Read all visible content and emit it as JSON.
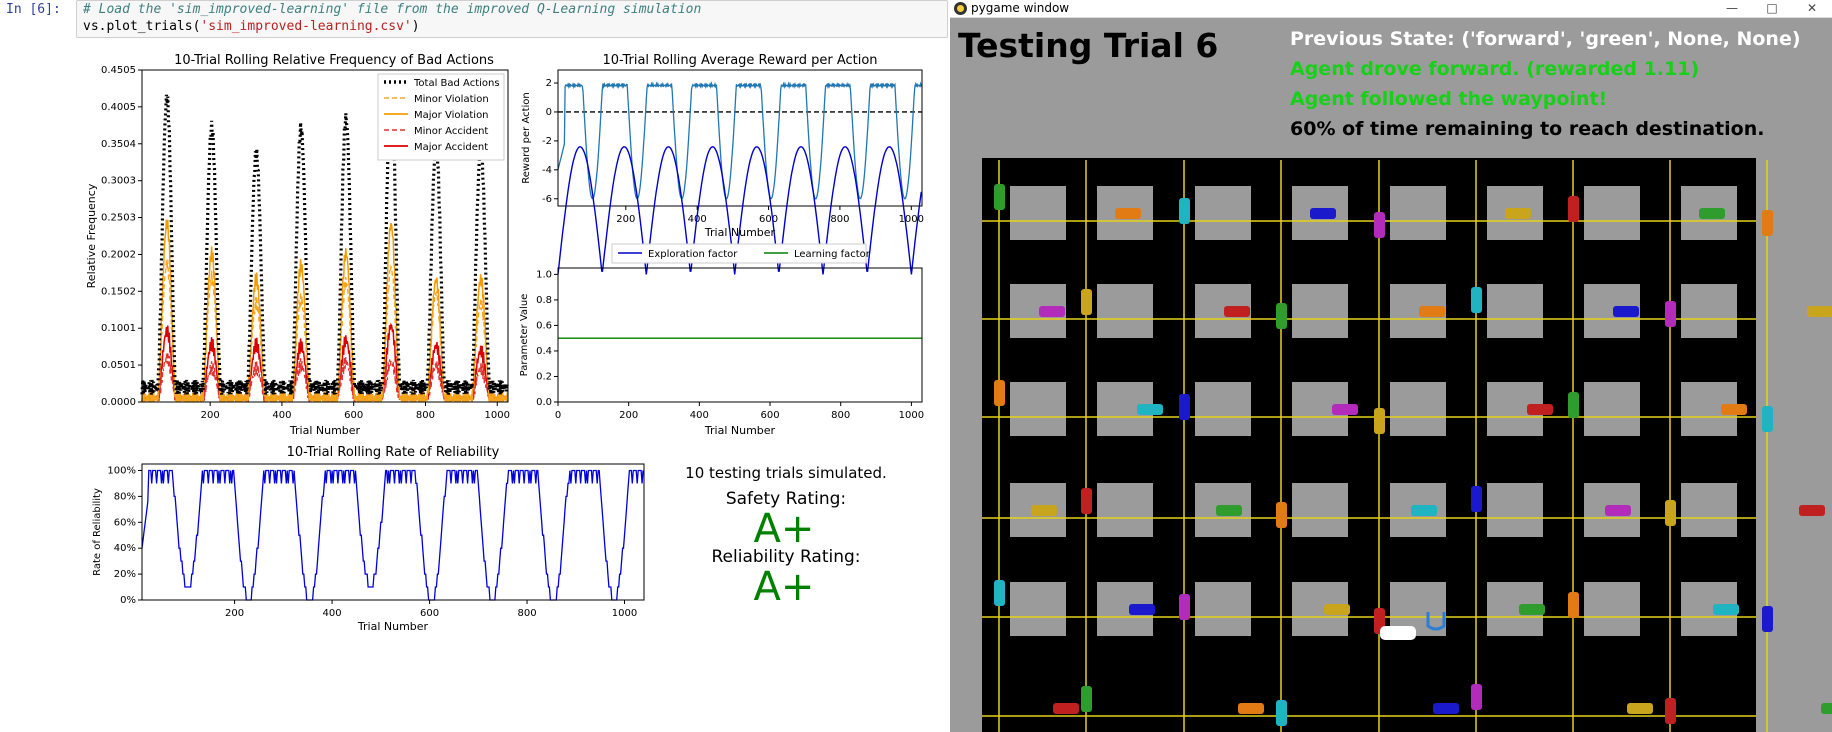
{
  "notebook": {
    "prompt": "In [6]:",
    "code_comment": "# Load the 'sim_improved-learning' file from the improved Q-Learning simulation",
    "code_call_prefix": "vs.plot_trials(",
    "code_call_arg": "'sim_improved-learning.csv'",
    "code_call_suffix": ")"
  },
  "charts_text": {
    "bad_title": "10-Trial Rolling Relative Frequency of Bad Actions",
    "bad_ylabel": "Relative Frequency",
    "bad_xlabel": "Trial Number",
    "bad_legend": [
      "Total Bad Actions",
      "Minor Violation",
      "Major Violation",
      "Minor Accident",
      "Major Accident"
    ],
    "reward_title": "10-Trial Rolling Average Reward per Action",
    "reward_ylabel": "Reward per Action",
    "reward_xlabel": "Trial Number",
    "param_legend": [
      "Exploration factor",
      "Learning factor"
    ],
    "param_ylabel": "Parameter Value",
    "param_xlabel": "Trial Number",
    "rel_title": "10-Trial Rolling Rate of Reliability",
    "rel_ylabel": "Rate of Reliability",
    "rel_xlabel": "Trial Number",
    "summary_trials": "10 testing trials simulated.",
    "safety_label": "Safety Rating:",
    "safety_grade": "A+",
    "reliability_label": "Reliability Rating:",
    "reliability_grade": "A+"
  },
  "chart_data": [
    {
      "type": "line",
      "title": "10-Trial Rolling Relative Frequency of Bad Actions",
      "xlabel": "Trial Number",
      "ylabel": "Relative Frequency",
      "xticks": [
        200,
        400,
        600,
        800,
        1000
      ],
      "yticks": [
        "0.0000",
        "0.0501",
        "0.1001",
        "0.1502",
        "0.2002",
        "0.2503",
        "0.3003",
        "0.3504",
        "0.4005",
        "0.4505"
      ],
      "xlim": [
        10,
        1030
      ],
      "ylim": [
        0,
        0.4505
      ],
      "legend_position": "top-right",
      "cycle_length": 125,
      "series": [
        {
          "name": "Total Bad Actions",
          "color": "#000000",
          "style": "dotted",
          "cycle_peaks": [
            0.43,
            0.43,
            0.39,
            0.39,
            0.37,
            0.42,
            0.37,
            0.4,
            0.35
          ]
        },
        {
          "name": "Minor Violation",
          "color": "#f5a623",
          "style": "dashed",
          "cycle_peaks": [
            0.2,
            0.2,
            0.16,
            0.15,
            0.16,
            0.18,
            0.16,
            0.16,
            0.15
          ]
        },
        {
          "name": "Major Violation",
          "color": "#f59b00",
          "style": "solid",
          "cycle_peaks": [
            0.26,
            0.24,
            0.2,
            0.2,
            0.2,
            0.24,
            0.18,
            0.2,
            0.18
          ]
        },
        {
          "name": "Minor Accident",
          "color": "#e03030",
          "style": "dashed",
          "cycle_peaks": [
            0.06,
            0.05,
            0.05,
            0.05,
            0.05,
            0.05,
            0.05,
            0.05,
            0.05
          ]
        },
        {
          "name": "Major Accident",
          "color": "#dd0000",
          "style": "solid",
          "cycle_peaks": [
            0.1,
            0.09,
            0.09,
            0.08,
            0.08,
            0.1,
            0.08,
            0.08,
            0.08
          ]
        }
      ]
    },
    {
      "type": "line",
      "title": "10-Trial Rolling Average Reward per Action",
      "xlabel": "Trial Number",
      "ylabel": "Reward per Action",
      "xticks": [
        200,
        400,
        600,
        800,
        1000
      ],
      "yticks": [
        -6,
        -4,
        -2,
        0,
        2
      ],
      "xlim": [
        10,
        1030
      ],
      "ylim": [
        -6.5,
        2.9
      ],
      "reference_line": 0,
      "series": [
        {
          "name": "",
          "color": "#1f77b4",
          "plateau": 2.0,
          "trough": -6.0
        }
      ]
    },
    {
      "type": "line",
      "xlabel": "Trial Number",
      "ylabel": "Parameter Value",
      "xticks": [
        0,
        200,
        400,
        600,
        800,
        1000
      ],
      "yticks": [
        "0.0",
        "0.2",
        "0.4",
        "0.6",
        "0.8",
        "1.0"
      ],
      "xlim": [
        0,
        1030
      ],
      "ylim": [
        0,
        1.05
      ],
      "legend_position": "top",
      "series": [
        {
          "name": "Exploration factor",
          "color": "#0000cc",
          "cycle_length": 125,
          "max": 1.0
        },
        {
          "name": "Learning factor",
          "color": "#008000",
          "constant": 0.5
        }
      ]
    },
    {
      "type": "line",
      "title": "10-Trial Rolling Rate of Reliability",
      "xlabel": "Trial Number",
      "ylabel": "Rate of Reliability",
      "xticks": [
        200,
        400,
        600,
        800,
        1000
      ],
      "yticks": [
        "0%",
        "20%",
        "40%",
        "60%",
        "80%",
        "100%"
      ],
      "xlim": [
        10,
        1040
      ],
      "ylim": [
        0,
        105
      ],
      "series": [
        {
          "name": "",
          "color": "#0000dd",
          "cycle_length": 125,
          "min_values": [
            10,
            0,
            0,
            10,
            0,
            0,
            0,
            0,
            20
          ]
        }
      ]
    }
  ],
  "pygame": {
    "window_title": "pygame window",
    "btn_min": "—",
    "btn_max": "□",
    "btn_close": "✕",
    "trial_title": "Testing Trial 6",
    "prev_state": "Previous State: ('forward', 'green', None, None)",
    "drove": "Agent drove forward. (rewarded 1.11)",
    "followed": "Agent followed the waypoint!",
    "time_remaining": "60% of time remaining to reach destination.",
    "colors": {
      "white_text": "#ffffff",
      "green_text": "#17d017",
      "black_text": "#000000",
      "road": "#000000",
      "block": "#9b9b9b",
      "yellow_line": "#e6d11b",
      "red_line": "#cc2222"
    }
  }
}
